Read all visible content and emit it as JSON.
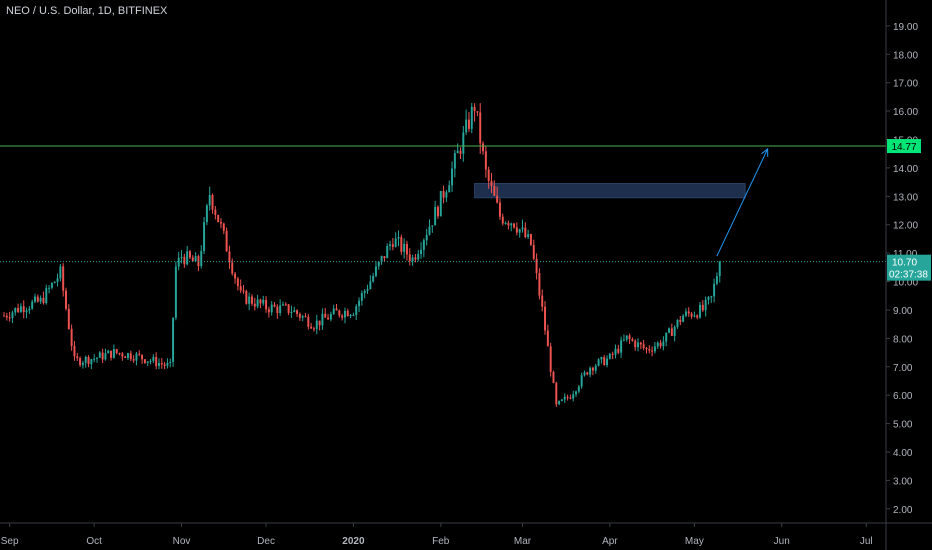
{
  "header": {
    "symbol_title": "NEO / U.S. Dollar, 1D, BITFINEX"
  },
  "colors": {
    "background": "#000000",
    "up": "#26a69a",
    "down": "#ef5350",
    "axis_text": "#b2b5be",
    "axis_line": "#3a3d47",
    "resistance_line": "#4caf50",
    "price_line": "#26a69a",
    "projection_arrow": "#2196f3",
    "zone_fill": "#1e2f4d",
    "price_label_bg": "#26a69a",
    "resistance_label_bg": "#00e676"
  },
  "chart_data": {
    "type": "candlestick",
    "title": "NEO / U.S. Dollar, 1D, BITFINEX",
    "ylim": [
      1.5,
      19.7
    ],
    "y_ticks": [
      "2.00",
      "3.00",
      "4.00",
      "5.00",
      "6.00",
      "7.00",
      "8.00",
      "9.00",
      "10.00",
      "11.00",
      "12.00",
      "13.00",
      "14.00",
      "15.00",
      "16.00",
      "17.00",
      "18.00",
      "19.00"
    ],
    "x_ticks": [
      "Sep",
      "Oct",
      "Nov",
      "Dec",
      "2020",
      "Feb",
      "Mar",
      "Apr",
      "May",
      "Jun",
      "Jul"
    ],
    "x_start": "2019-08-30",
    "x_end": "2020-07-08",
    "grid": false,
    "last_price": {
      "value": 10.7,
      "label": "10.70"
    },
    "countdown": "02:37:38",
    "horizontal_lines": [
      {
        "value": 14.77,
        "label": "14.77"
      }
    ],
    "zone": {
      "from": "2020-02-13",
      "to": "2020-05-19",
      "low": 12.95,
      "high": 13.45
    },
    "projection_arrow": {
      "from": [
        "2020-05-09",
        10.9
      ],
      "to": [
        "2020-05-27",
        14.67
      ]
    },
    "series_anchors": [
      [
        "2019-08-30",
        8.8
      ],
      [
        "2019-09-05",
        9.1
      ],
      [
        "2019-09-12",
        9.3
      ],
      [
        "2019-09-19",
        10.3
      ],
      [
        "2019-09-24",
        7.2
      ],
      [
        "2019-10-01",
        7.3
      ],
      [
        "2019-10-08",
        7.5
      ],
      [
        "2019-10-15",
        7.4
      ],
      [
        "2019-10-22",
        7.2
      ],
      [
        "2019-10-28",
        7.0
      ],
      [
        "2019-10-30",
        10.5
      ],
      [
        "2019-11-01",
        10.9
      ],
      [
        "2019-11-07",
        10.6
      ],
      [
        "2019-11-11",
        13.1
      ],
      [
        "2019-11-15",
        11.9
      ],
      [
        "2019-11-22",
        9.5
      ],
      [
        "2019-12-01",
        9.1
      ],
      [
        "2019-12-10",
        9.0
      ],
      [
        "2019-12-18",
        8.5
      ],
      [
        "2019-12-26",
        8.9
      ],
      [
        "2020-01-01",
        9.0
      ],
      [
        "2020-01-08",
        10.2
      ],
      [
        "2020-01-15",
        11.5
      ],
      [
        "2020-01-22",
        10.8
      ],
      [
        "2020-01-31",
        12.6
      ],
      [
        "2020-02-06",
        14.2
      ],
      [
        "2020-02-13",
        16.2
      ],
      [
        "2020-02-17",
        13.8
      ],
      [
        "2020-02-22",
        12.3
      ],
      [
        "2020-02-27",
        12.1
      ],
      [
        "2020-03-04",
        11.3
      ],
      [
        "2020-03-08",
        9.0
      ],
      [
        "2020-03-13",
        5.6
      ],
      [
        "2020-03-18",
        6.0
      ],
      [
        "2020-03-25",
        7.0
      ],
      [
        "2020-04-01",
        7.3
      ],
      [
        "2020-04-07",
        8.0
      ],
      [
        "2020-04-14",
        7.6
      ],
      [
        "2020-04-20",
        7.9
      ],
      [
        "2020-04-27",
        8.8
      ],
      [
        "2020-05-04",
        9.0
      ],
      [
        "2020-05-07",
        9.4
      ],
      [
        "2020-05-10",
        10.7
      ]
    ]
  }
}
